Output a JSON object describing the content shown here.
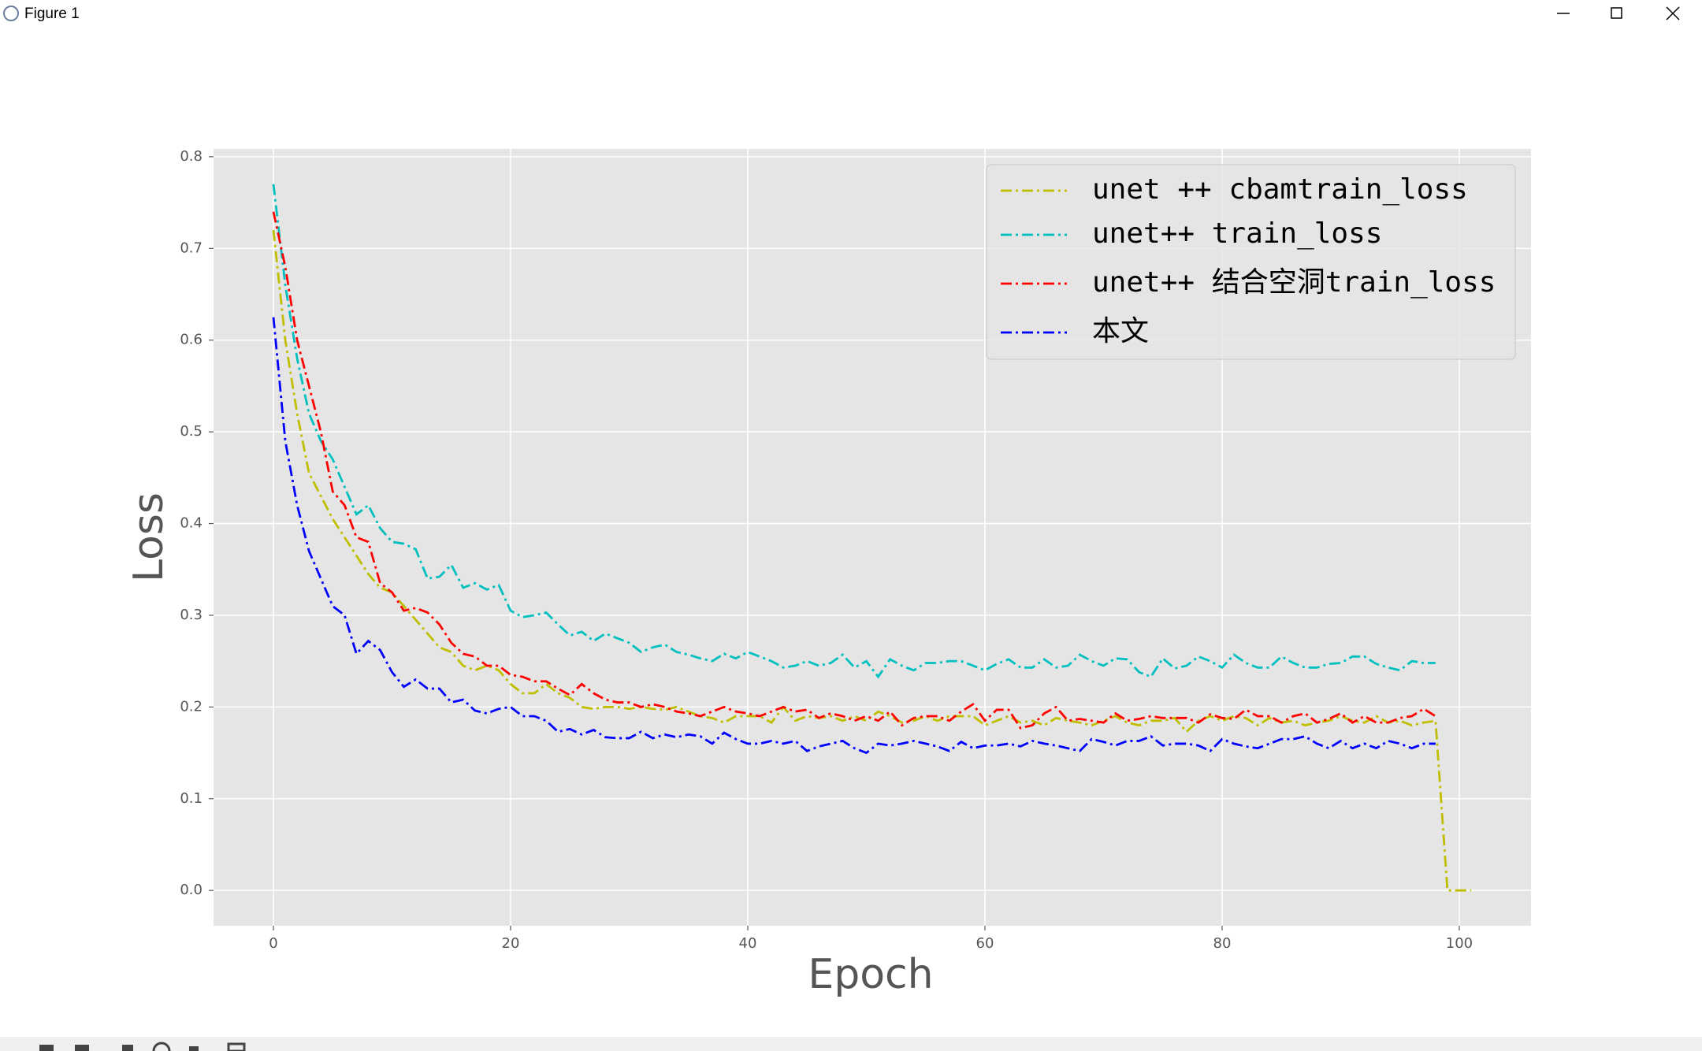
{
  "window_title": "Figure 1",
  "chart_data": {
    "type": "line",
    "xlabel": "Epoch",
    "ylabel": "Loss",
    "x": [
      0,
      1,
      2,
      3,
      4,
      5,
      6,
      7,
      8,
      9,
      10,
      11,
      12,
      13,
      14,
      15,
      16,
      17,
      18,
      19,
      20,
      21,
      22,
      23,
      24,
      25,
      26,
      27,
      28,
      29,
      30,
      31,
      32,
      33,
      34,
      35,
      36,
      37,
      38,
      39,
      40,
      41,
      42,
      43,
      44,
      45,
      46,
      47,
      48,
      49,
      50,
      51,
      52,
      53,
      54,
      55,
      56,
      57,
      58,
      59,
      60,
      61,
      62,
      63,
      64,
      65,
      66,
      67,
      68,
      69,
      70,
      71,
      72,
      73,
      74,
      75,
      76,
      77,
      78,
      79,
      80,
      81,
      82,
      83,
      84,
      85,
      86,
      87,
      88,
      89,
      90,
      91,
      92,
      93,
      94,
      95,
      96,
      97,
      98,
      99,
      100,
      101
    ],
    "xlim": [
      -5.05,
      106.05
    ],
    "xticks": [
      0,
      20,
      40,
      60,
      80,
      100
    ],
    "ylim": [
      -0.0385,
      0.8085
    ],
    "yticks": [
      {
        "value": 0,
        "label": "0.0"
      },
      0.1,
      0.2,
      0.3,
      0.4,
      0.5,
      0.6,
      0.7,
      0.8
    ],
    "grid": true,
    "legend": "upper right",
    "series": [
      {
        "name": "unet ++ cbamtrain_loss",
        "color": "#bfbf00",
        "values": [
          0.72,
          0.6,
          0.52,
          0.455,
          0.43,
          0.405,
          0.385,
          0.365,
          0.345,
          0.33,
          0.325,
          0.31,
          0.295,
          0.28,
          0.265,
          0.26,
          0.245,
          0.24,
          0.245,
          0.24,
          0.225,
          0.215,
          0.215,
          0.225,
          0.215,
          0.21,
          0.2,
          0.198,
          0.2,
          0.2,
          0.198,
          0.2,
          0.198,
          0.197,
          0.2,
          0.195,
          0.19,
          0.188,
          0.183,
          0.19,
          0.19,
          0.19,
          0.183,
          0.2,
          0.185,
          0.19,
          0.188,
          0.19,
          0.185,
          0.19,
          0.185,
          0.195,
          0.19,
          0.183,
          0.185,
          0.19,
          0.185,
          0.19,
          0.19,
          0.19,
          0.18,
          0.185,
          0.19,
          0.183,
          0.185,
          0.18,
          0.188,
          0.185,
          0.183,
          0.18,
          0.185,
          0.19,
          0.183,
          0.18,
          0.185,
          0.185,
          0.188,
          0.173,
          0.185,
          0.19,
          0.185,
          0.19,
          0.188,
          0.18,
          0.188,
          0.183,
          0.185,
          0.18,
          0.183,
          0.185,
          0.19,
          0.185,
          0.183,
          0.19,
          0.183,
          0.185,
          0.18,
          0.183,
          0.185,
          0,
          0,
          0
        ]
      },
      {
        "name": "unet++ train_loss",
        "color": "#00bfbf",
        "values": [
          0.77,
          0.66,
          0.58,
          0.52,
          0.49,
          0.47,
          0.44,
          0.41,
          0.42,
          0.395,
          0.38,
          0.378,
          0.372,
          0.34,
          0.342,
          0.355,
          0.33,
          0.335,
          0.328,
          0.333,
          0.305,
          0.298,
          0.3,
          0.303,
          0.29,
          0.278,
          0.282,
          0.272,
          0.28,
          0.275,
          0.27,
          0.26,
          0.265,
          0.268,
          0.26,
          0.257,
          0.253,
          0.25,
          0.258,
          0.253,
          0.26,
          0.255,
          0.25,
          0.243,
          0.245,
          0.25,
          0.245,
          0.248,
          0.257,
          0.243,
          0.25,
          0.233,
          0.252,
          0.245,
          0.24,
          0.248,
          0.248,
          0.25,
          0.25,
          0.245,
          0.24,
          0.247,
          0.252,
          0.243,
          0.243,
          0.252,
          0.243,
          0.245,
          0.257,
          0.25,
          0.245,
          0.253,
          0.252,
          0.238,
          0.233,
          0.253,
          0.242,
          0.245,
          0.255,
          0.25,
          0.243,
          0.257,
          0.248,
          0.243,
          0.243,
          0.255,
          0.248,
          0.243,
          0.243,
          0.247,
          0.248,
          0.255,
          0.255,
          0.247,
          0.243,
          0.24,
          0.25,
          0.248,
          0.248,
          null,
          null,
          null
        ]
      },
      {
        "name": "unet++ 结合空洞train_loss",
        "color": "#ff0000",
        "values": [
          0.74,
          0.68,
          0.6,
          0.55,
          0.5,
          0.435,
          0.42,
          0.385,
          0.38,
          0.335,
          0.325,
          0.305,
          0.308,
          0.303,
          0.29,
          0.27,
          0.258,
          0.255,
          0.245,
          0.245,
          0.235,
          0.233,
          0.228,
          0.228,
          0.22,
          0.213,
          0.225,
          0.215,
          0.208,
          0.205,
          0.205,
          0.2,
          0.203,
          0.2,
          0.195,
          0.193,
          0.19,
          0.195,
          0.2,
          0.195,
          0.193,
          0.19,
          0.195,
          0.2,
          0.195,
          0.197,
          0.188,
          0.193,
          0.19,
          0.185,
          0.19,
          0.185,
          0.195,
          0.18,
          0.188,
          0.19,
          0.19,
          0.185,
          0.195,
          0.203,
          0.185,
          0.197,
          0.197,
          0.177,
          0.18,
          0.193,
          0.2,
          0.185,
          0.187,
          0.185,
          0.183,
          0.193,
          0.185,
          0.187,
          0.19,
          0.188,
          0.188,
          0.188,
          0.183,
          0.192,
          0.188,
          0.187,
          0.197,
          0.19,
          0.19,
          0.183,
          0.19,
          0.193,
          0.183,
          0.187,
          0.193,
          0.183,
          0.19,
          0.183,
          0.183,
          0.188,
          0.19,
          0.198,
          0.19,
          null,
          null,
          null
        ]
      },
      {
        "name": "本文",
        "color": "#0000ff",
        "values": [
          0.625,
          0.49,
          0.42,
          0.37,
          0.34,
          0.31,
          0.3,
          0.258,
          0.272,
          0.262,
          0.238,
          0.222,
          0.23,
          0.22,
          0.22,
          0.205,
          0.208,
          0.196,
          0.193,
          0.198,
          0.2,
          0.19,
          0.19,
          0.185,
          0.173,
          0.176,
          0.17,
          0.175,
          0.167,
          0.166,
          0.166,
          0.173,
          0.166,
          0.17,
          0.167,
          0.17,
          0.168,
          0.16,
          0.172,
          0.165,
          0.16,
          0.16,
          0.163,
          0.16,
          0.163,
          0.152,
          0.157,
          0.16,
          0.163,
          0.155,
          0.15,
          0.16,
          0.158,
          0.16,
          0.163,
          0.16,
          0.157,
          0.152,
          0.162,
          0.155,
          0.158,
          0.158,
          0.16,
          0.157,
          0.163,
          0.16,
          0.158,
          0.155,
          0.152,
          0.165,
          0.162,
          0.158,
          0.163,
          0.163,
          0.168,
          0.158,
          0.16,
          0.16,
          0.158,
          0.152,
          0.165,
          0.16,
          0.157,
          0.155,
          0.16,
          0.165,
          0.165,
          0.168,
          0.16,
          0.155,
          0.163,
          0.155,
          0.16,
          0.155,
          0.163,
          0.16,
          0.155,
          0.16,
          0.16,
          null,
          null,
          null
        ]
      }
    ]
  }
}
